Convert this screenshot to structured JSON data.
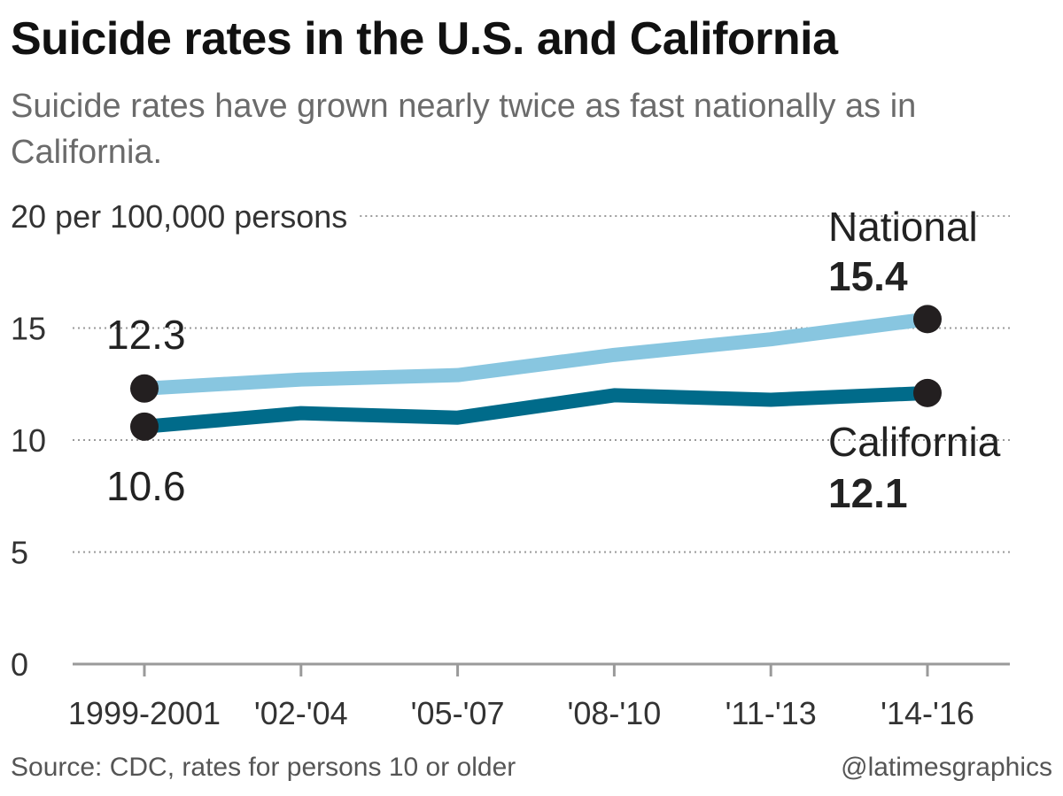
{
  "title": "Suicide rates in the U.S. and California",
  "subtitle": "Suicide rates have grown nearly twice as fast nationally as in California.",
  "source": "Source: CDC, rates for persons 10 or older",
  "credit": "@latimesgraphics",
  "chart_data": {
    "type": "line",
    "title": "Suicide rates in the U.S. and California",
    "ylabel": "20 per 100,000 persons",
    "ylim": [
      0,
      20
    ],
    "yticks": [
      "0",
      "5",
      "10",
      "15",
      "20 per 100,000 persons"
    ],
    "categories": [
      "1999-2001",
      "'02-'04",
      "'05-'07",
      "'08-'10",
      "'11-'13",
      "'14-'16"
    ],
    "series": [
      {
        "name": "National",
        "color": "#88c6e0",
        "values": [
          12.3,
          12.7,
          12.9,
          13.8,
          14.5,
          15.4
        ],
        "start_label": "12.3",
        "end_label": "15.4"
      },
      {
        "name": "California",
        "color": "#006b8a",
        "values": [
          10.6,
          11.2,
          11.0,
          12.0,
          11.8,
          12.1
        ],
        "start_label": "10.6",
        "end_label": "12.1"
      }
    ],
    "grid": true,
    "marker_color": "#231f20"
  }
}
